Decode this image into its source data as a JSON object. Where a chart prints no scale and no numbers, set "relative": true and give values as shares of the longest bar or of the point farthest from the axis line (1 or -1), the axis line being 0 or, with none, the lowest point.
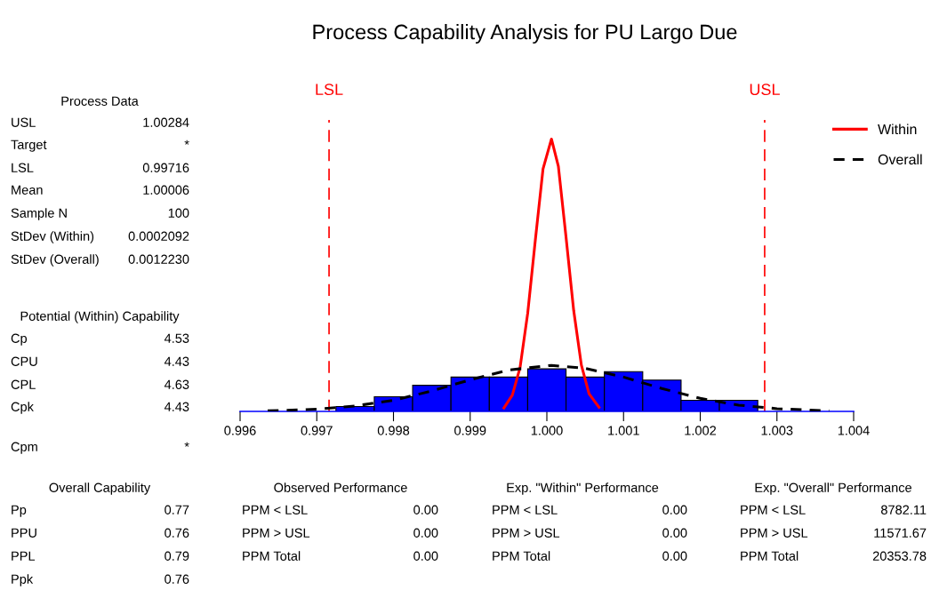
{
  "chart_data": {
    "type": "histogram",
    "title": "Process Capability Analysis for PU Largo Due",
    "relative": true,
    "color": "#0000ff",
    "bins": [
      0.99725,
      0.99775,
      0.99825,
      0.99875,
      0.99925,
      0.99975,
      1.00025,
      1.00075,
      1.00125,
      1.00175,
      1.00225,
      1.00275
    ],
    "values": [
      0.018,
      0.054,
      0.096,
      0.126,
      0.126,
      0.156,
      0.126,
      0.146,
      0.115,
      0.041,
      0.041
    ],
    "series": [
      {
        "name": "Within",
        "type": "line",
        "color": "#ff0000",
        "line_style": "solid",
        "x": [
          0.99944,
          0.99955,
          0.99965,
          0.99975,
          0.99985,
          0.99995,
          1.00006,
          1.00015,
          1.00025,
          1.00035,
          1.00045,
          1.00055,
          1.00068
        ],
        "values": [
          0.013,
          0.06,
          0.16,
          0.36,
          0.63,
          0.89,
          1.0,
          0.9,
          0.64,
          0.37,
          0.17,
          0.065,
          0.015
        ]
      },
      {
        "name": "Overall",
        "type": "line",
        "color": "#000000",
        "line_style": "dashed",
        "x": [
          0.99636,
          0.997,
          0.9975,
          0.998,
          0.9985,
          0.999,
          0.9995,
          1.00006,
          1.0005,
          1.001,
          1.0015,
          1.002,
          1.0025,
          1.003,
          1.00368
        ],
        "values": [
          0.002,
          0.008,
          0.02,
          0.041,
          0.075,
          0.116,
          0.152,
          0.169,
          0.158,
          0.126,
          0.084,
          0.048,
          0.023,
          0.01,
          0.002
        ]
      }
    ],
    "xlim": [
      0.996,
      1.004
    ],
    "xticks": [
      0.996,
      0.997,
      0.998,
      0.999,
      {
        "value": 1.0,
        "label": "1.000"
      },
      1.001,
      1.002,
      1.003,
      1.004
    ],
    "ref_lines": [
      {
        "axis": "x",
        "value": 0.99716,
        "label": "LSL",
        "color": "#ff0000",
        "line_style": "dashed"
      },
      {
        "axis": "x",
        "value": 1.00284,
        "label": "USL",
        "color": "#ff0000",
        "line_style": "dashed"
      }
    ],
    "legend": "top right",
    "grid": false,
    "annotations": [
      "Process Data",
      "USL",
      "1.00284",
      "Target",
      "*",
      "LSL",
      "0.99716",
      "Mean",
      "1.00006",
      "Sample N",
      "100",
      "StDev (Within)",
      "0.0002092",
      "StDev (Overall)",
      "0.0012230",
      "Potential (Within) Capability",
      "Cp",
      "4.53",
      "CPU",
      "4.43",
      "CPL",
      "4.63",
      "Cpk",
      "4.43",
      "Cpm",
      "*",
      "Overall Capability",
      "Pp",
      "0.77",
      "PPU",
      "0.76",
      "PPL",
      "0.79",
      "Ppk",
      "0.76",
      "Observed Performance",
      "PPM < LSL",
      "0.00",
      "PPM > USL",
      "0.00",
      "PPM Total",
      "0.00",
      "Exp. \"Within\" Performance",
      "PPM < LSL",
      "0.00",
      "PPM > USL",
      "0.00",
      "PPM Total",
      "0.00",
      "Exp. \"Overall\" Performance",
      "PPM < LSL",
      "8782.11",
      "PPM > USL",
      "11571.67",
      "PPM Total",
      "20353.78"
    ]
  }
}
